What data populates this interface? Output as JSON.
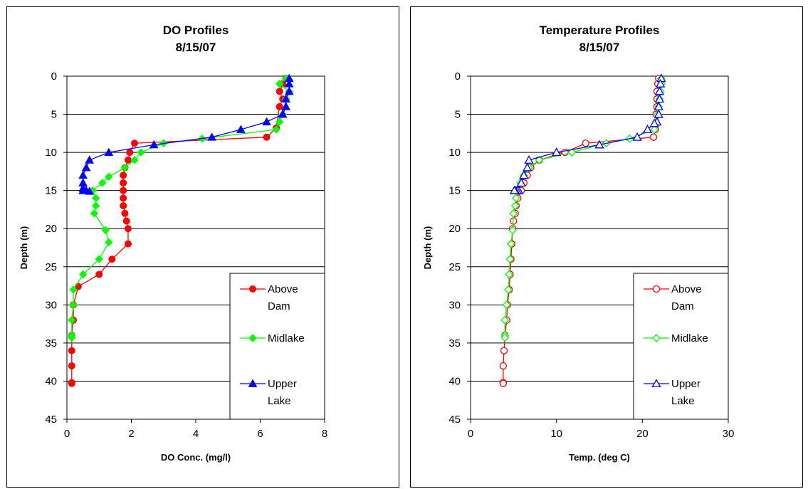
{
  "chart_data": [
    {
      "type": "line",
      "title": [
        "DO Profiles",
        "8/15/07"
      ],
      "xlabel": "DO Conc. (mg/l)",
      "ylabel": "Depth (m)",
      "xlim": [
        0,
        8
      ],
      "ylim": [
        0,
        45
      ],
      "y_inverted": true,
      "xticks": [
        "0",
        "2",
        "4",
        "6",
        "8"
      ],
      "yticks": [
        "0",
        "5",
        "10",
        "15",
        "20",
        "25",
        "30",
        "35",
        "40",
        "45"
      ],
      "grid": "horizontal",
      "legend_position": "bottom-right",
      "series": [
        {
          "name": [
            "Above",
            "Dam"
          ],
          "color": "#ff0000",
          "marker": "circle-filled",
          "x": [
            6.8,
            6.7,
            6.6,
            6.7,
            6.6,
            6.5,
            6.2,
            2.1,
            1.95,
            1.9,
            1.8,
            1.75,
            1.75,
            1.75,
            1.75,
            1.75,
            1.8,
            1.85,
            1.9,
            1.9,
            1.4,
            1.0,
            0.35,
            0.2,
            0.2,
            0.15,
            0.15,
            0.15,
            0.15,
            0.15
          ],
          "y": [
            0.3,
            1.0,
            2.0,
            3.0,
            4.0,
            6.8,
            8.0,
            8.8,
            10.0,
            11.0,
            12.0,
            13.0,
            14.0,
            15.0,
            16.0,
            17.0,
            18.0,
            19.0,
            20.0,
            22.0,
            24.0,
            26.0,
            27.6,
            30.0,
            32.0,
            34.0,
            36.0,
            38.0,
            40.2,
            40.3
          ]
        },
        {
          "name": [
            "Midlake"
          ],
          "color": "#00ff00",
          "marker": "diamond-filled",
          "x": [
            6.8,
            6.6,
            6.9,
            6.8,
            6.7,
            6.6,
            6.5,
            4.2,
            3.0,
            2.3,
            2.1,
            1.8,
            1.3,
            1.1,
            0.8,
            0.9,
            0.9,
            0.85,
            1.2,
            1.3,
            1.0,
            0.5,
            0.2,
            0.2,
            0.15,
            0.15,
            0.15
          ],
          "y": [
            0.3,
            1.0,
            2.0,
            3.0,
            5.0,
            6.0,
            7.0,
            8.2,
            8.8,
            10.0,
            11.0,
            12.0,
            13.2,
            14.0,
            15.0,
            16.0,
            17.0,
            18.0,
            20.2,
            21.8,
            24.0,
            26.0,
            28.0,
            30.0,
            32.0,
            34.0,
            34.3
          ]
        },
        {
          "name": [
            "Upper",
            "Lake"
          ],
          "color": "#0000ff",
          "marker": "triangle-filled",
          "x": [
            6.9,
            6.9,
            6.9,
            6.8,
            6.8,
            6.7,
            6.7,
            6.2,
            5.4,
            4.5,
            2.7,
            1.3,
            0.7,
            0.6,
            0.5,
            0.5,
            0.5,
            0.5,
            0.7,
            0.6
          ],
          "y": [
            0.3,
            1.0,
            2.0,
            3.0,
            4.0,
            5.0,
            5.0,
            6.0,
            7.0,
            8.0,
            9.0,
            10.0,
            11.0,
            12.0,
            13.0,
            14.0,
            15.0,
            14.7,
            15.1,
            15.0
          ]
        }
      ]
    },
    {
      "type": "line",
      "title": [
        "Temperature Profiles",
        "8/15/07"
      ],
      "xlabel": "Temp. (deg C)",
      "ylabel": "Depth (m)",
      "xlim": [
        0,
        30
      ],
      "ylim": [
        0,
        45
      ],
      "y_inverted": true,
      "xticks": [
        "0",
        "10",
        "20",
        "30"
      ],
      "yticks": [
        "0",
        "5",
        "10",
        "15",
        "20",
        "25",
        "30",
        "35",
        "40",
        "45"
      ],
      "grid": "horizontal",
      "legend_position": "bottom-right",
      "series": [
        {
          "name": [
            "Above",
            "Dam"
          ],
          "color": "#ff0000",
          "marker": "circle-open",
          "x": [
            21.9,
            21.8,
            21.7,
            21.7,
            21.7,
            21.6,
            21.5,
            21.3,
            13.4,
            11.0,
            8.0,
            7.0,
            6.6,
            6.2,
            5.9,
            5.5,
            5.3,
            5.2,
            5.0,
            4.9,
            4.8,
            4.7,
            4.6,
            4.5,
            4.3,
            4.2,
            4.0,
            3.9,
            3.8,
            3.8,
            3.8,
            3.8
          ],
          "y": [
            0.3,
            1.0,
            2.0,
            3.0,
            4.0,
            5.0,
            7.0,
            8.0,
            8.8,
            10.0,
            11.0,
            12.0,
            13.0,
            14.0,
            15.0,
            16.0,
            17.0,
            18.0,
            19.0,
            20.0,
            22.0,
            24.0,
            26.0,
            28.0,
            30.0,
            32.0,
            34.0,
            36.0,
            38.0,
            40.2,
            40.3,
            40.3
          ]
        },
        {
          "name": [
            "Midlake"
          ],
          "color": "#00ff00",
          "marker": "diamond-open",
          "x": [
            22.2,
            22.2,
            22.1,
            22.0,
            21.9,
            21.8,
            21.6,
            21.4,
            18.5,
            15.8,
            11.8,
            8.0,
            6.8,
            6.2,
            5.8,
            5.5,
            5.3,
            5.2,
            5.0,
            4.9,
            4.7,
            4.6,
            4.5,
            4.4,
            4.2,
            4.0,
            4.0,
            4.0
          ],
          "y": [
            0.3,
            1.0,
            2.0,
            3.0,
            4.0,
            5.0,
            6.0,
            7.0,
            8.2,
            8.8,
            10.0,
            11.0,
            12.0,
            13.0,
            14.0,
            15.0,
            16.0,
            17.0,
            18.0,
            20.2,
            22.0,
            24.0,
            26.0,
            28.0,
            30.0,
            32.0,
            34.0,
            34.3
          ]
        },
        {
          "name": [
            "Upper",
            "Lake"
          ],
          "color": "#0000ff",
          "marker": "triangle-open",
          "x": [
            22.2,
            22.1,
            22.0,
            22.0,
            21.9,
            21.9,
            21.7,
            21.4,
            20.6,
            19.4,
            15.0,
            10.0,
            6.8,
            6.6,
            6.2,
            5.9,
            5.6,
            5.4,
            5.2,
            5.1
          ],
          "y": [
            0.3,
            1.0,
            2.0,
            3.0,
            4.0,
            5.0,
            6.0,
            6.2,
            7.0,
            8.0,
            9.0,
            10.0,
            11.0,
            12.0,
            13.0,
            14.0,
            15.0,
            15.0,
            15.0,
            15.0
          ]
        }
      ]
    }
  ]
}
